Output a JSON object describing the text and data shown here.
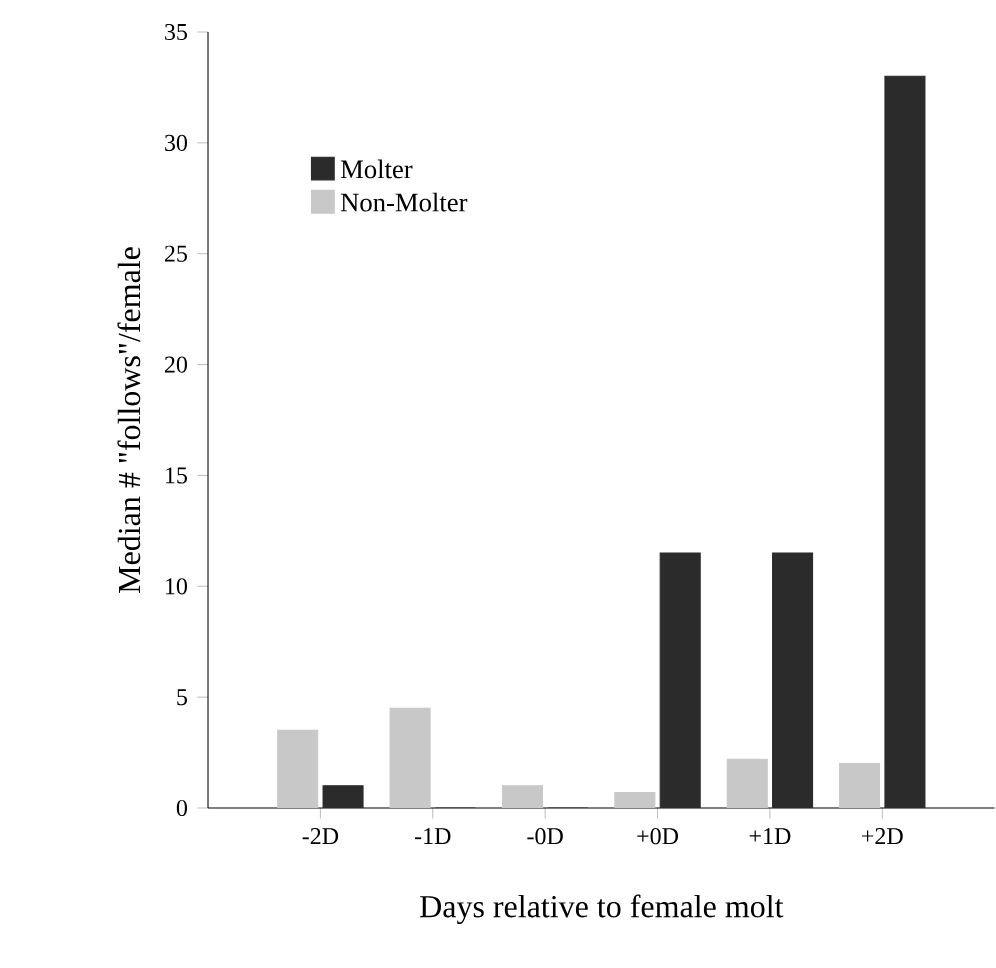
{
  "chart_data": {
    "type": "bar",
    "xlabel": "Days relative to female molt",
    "ylabel": "Median # \"follows\"/female",
    "categories": [
      "-2D",
      "-1D",
      "-0D",
      "+0D",
      "+1D",
      "+2D"
    ],
    "series": [
      {
        "name": "Non-Molter",
        "color": "#c8c8c8",
        "values": [
          3.5,
          4.5,
          1.0,
          0.7,
          2.2,
          2.0
        ]
      },
      {
        "name": "Molter",
        "color": "#2b2b2b",
        "values": [
          1.0,
          0,
          0,
          11.5,
          11.5,
          33.0
        ]
      }
    ],
    "ylim": [
      0,
      35
    ],
    "yticks": [
      0,
      5,
      10,
      15,
      20,
      25,
      30,
      35
    ],
    "legend": "top left",
    "grid": false
  }
}
